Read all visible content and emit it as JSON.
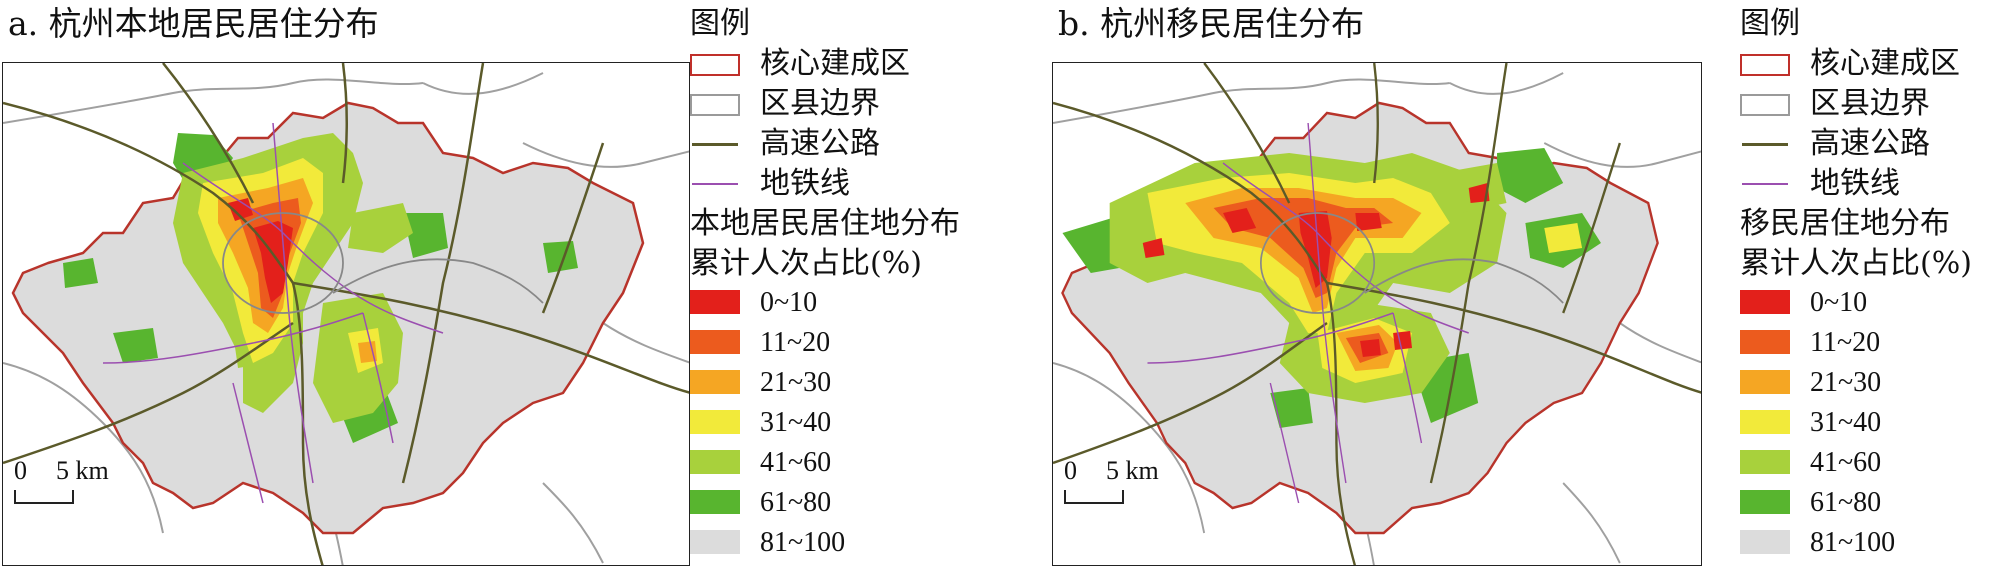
{
  "panels": [
    {
      "title": "a. 杭州本地居民居住分布",
      "legend_title": "图例",
      "legend_items": [
        {
          "label": "核心建成区",
          "symbol": "core-boundary",
          "color": "#c0302a"
        },
        {
          "label": "区县边界",
          "symbol": "district-boundary",
          "color": "#9a9a9a"
        },
        {
          "label": "高速公路",
          "symbol": "expressway",
          "color": "#5b5a2a"
        },
        {
          "label": "地铁线",
          "symbol": "metro-line",
          "color": "#9b4fb0"
        }
      ],
      "density_title_line1": "本地居民居住地分布",
      "density_title_line2": "累计人次占比(%)",
      "classes": [
        {
          "label": "0~10",
          "color": "#e3201b"
        },
        {
          "label": "11~20",
          "color": "#ec5b1e"
        },
        {
          "label": "21~30",
          "color": "#f5a623"
        },
        {
          "label": "31~40",
          "color": "#f2ea3a"
        },
        {
          "label": "41~60",
          "color": "#a8d13c"
        },
        {
          "label": "61~80",
          "color": "#58b52f"
        },
        {
          "label": "81~100",
          "color": "#dcdcdc"
        }
      ],
      "scale": {
        "zero": "0",
        "five": "5 km"
      }
    },
    {
      "title": "b. 杭州移民居住分布",
      "legend_title": "图例",
      "legend_items": [
        {
          "label": "核心建成区",
          "symbol": "core-boundary",
          "color": "#c0302a"
        },
        {
          "label": "区县边界",
          "symbol": "district-boundary",
          "color": "#9a9a9a"
        },
        {
          "label": "高速公路",
          "symbol": "expressway",
          "color": "#5b5a2a"
        },
        {
          "label": "地铁线",
          "symbol": "metro-line",
          "color": "#9b4fb0"
        }
      ],
      "density_title_line1": "移民居住地分布",
      "density_title_line2": "累计人次占比(%)",
      "classes": [
        {
          "label": "0~10",
          "color": "#e3201b"
        },
        {
          "label": "11~20",
          "color": "#ec5b1e"
        },
        {
          "label": "21~30",
          "color": "#f5a623"
        },
        {
          "label": "31~40",
          "color": "#f2ea3a"
        },
        {
          "label": "41~60",
          "color": "#a8d13c"
        },
        {
          "label": "61~80",
          "color": "#58b52f"
        },
        {
          "label": "81~100",
          "color": "#dcdcdc"
        }
      ],
      "scale": {
        "zero": "0",
        "five": "5 km"
      }
    }
  ]
}
